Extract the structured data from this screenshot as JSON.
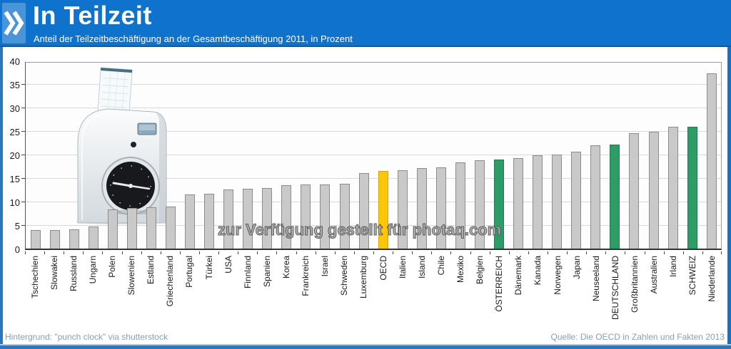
{
  "header": {
    "title": "In Teilzeit",
    "subtitle": "Anteil der Teilzeitbeschäftigung an der Gesamtbeschäftigung 2011, in Prozent"
  },
  "watermark": "zur Verfügung gestellt für photaq.com",
  "footer": {
    "background_credit": "Hintergrund: \"punch clock\" via shutterstock",
    "source": "Quelle: Die OECD in Zahlen und Fakten 2013"
  },
  "colors": {
    "header_blue": "#0f72cc",
    "logo_tile_blue": "#4a94d8",
    "frame_blue": "#2b77c0",
    "gridline": "#d9d9d9",
    "footer_text": "#85a0b2",
    "bar_colors": {
      "default": {
        "fill": "#c9c9c9",
        "border": "#8c8c8c"
      },
      "oecd": {
        "fill": "#fcc60a",
        "border": "#d9a400"
      },
      "highlight": {
        "fill": "#2f9c68",
        "border": "#1f7a50"
      }
    }
  },
  "chart_data": {
    "type": "bar",
    "title": "In Teilzeit",
    "subtitle": "Anteil der Teilzeitbeschäftigung an der Gesamtbeschäftigung 2011, in Prozent",
    "xlabel": "",
    "ylabel": "Prozent",
    "ylim": [
      0,
      40
    ],
    "ytick_step": 5,
    "grid": true,
    "legend": "none",
    "categories": [
      "Tschechien",
      "Slowakei",
      "Russland",
      "Ungarn",
      "Polen",
      "Slowenien",
      "Estland",
      "Griechenland",
      "Portugal",
      "Türkei",
      "USA",
      "Finnland",
      "Spanien",
      "Korea",
      "Frankreich",
      "Israel",
      "Schweden",
      "Luxemburg",
      "OECD",
      "Italien",
      "Island",
      "Chile",
      "Mexiko",
      "Belgien",
      "ÖSTERREICH",
      "Dänemark",
      "Kanada",
      "Norwegen",
      "Japan",
      "Neuseeland",
      "DEUTSCHLAND",
      "Großbritannien",
      "Australien",
      "Irland",
      "SCHWEIZ",
      "Niederlande"
    ],
    "values": [
      3.9,
      4.0,
      4.1,
      4.7,
      8.3,
      8.7,
      8.8,
      9.0,
      11.5,
      11.7,
      12.6,
      12.7,
      12.9,
      13.5,
      13.6,
      13.6,
      13.8,
      16.0,
      16.5,
      16.7,
      17.1,
      17.2,
      18.3,
      18.8,
      19.0,
      19.2,
      19.9,
      20.0,
      20.6,
      22.0,
      22.1,
      24.6,
      24.9,
      25.9,
      25.9,
      37.2
    ],
    "styles": [
      "default",
      "default",
      "default",
      "default",
      "default",
      "default",
      "default",
      "default",
      "default",
      "default",
      "default",
      "default",
      "default",
      "default",
      "default",
      "default",
      "default",
      "default",
      "oecd",
      "default",
      "default",
      "default",
      "default",
      "default",
      "highlight",
      "default",
      "default",
      "default",
      "default",
      "default",
      "highlight",
      "default",
      "default",
      "default",
      "highlight",
      "default"
    ]
  }
}
